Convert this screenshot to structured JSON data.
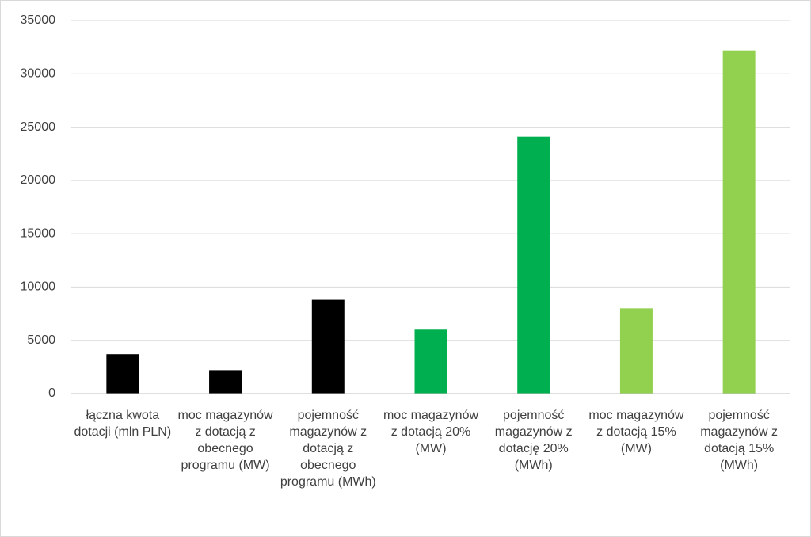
{
  "chart_data": {
    "type": "bar",
    "categories": [
      "łączna kwota dotacji (mln PLN)",
      "moc magazynów z dotacją z obecnego programu (MW)",
      "pojemność magazynów z dotacją z obecnego programu (MWh)",
      "moc magazynów z dotacją 20% (MW)",
      "pojemność magazynów z dotację 20% (MWh)",
      "moc magazynów z dotacją 15% (MW)",
      "pojemność magazynów z dotacją 15% (MWh)"
    ],
    "values": [
      3700,
      2200,
      8800,
      6000,
      24100,
      8000,
      32200
    ],
    "colors": [
      "#000000",
      "#000000",
      "#000000",
      "#00b050",
      "#00b050",
      "#92d050",
      "#92d050"
    ],
    "ylim": [
      0,
      35000
    ],
    "yticks": [
      0,
      5000,
      10000,
      15000,
      20000,
      25000,
      30000,
      35000
    ],
    "grid": true
  }
}
